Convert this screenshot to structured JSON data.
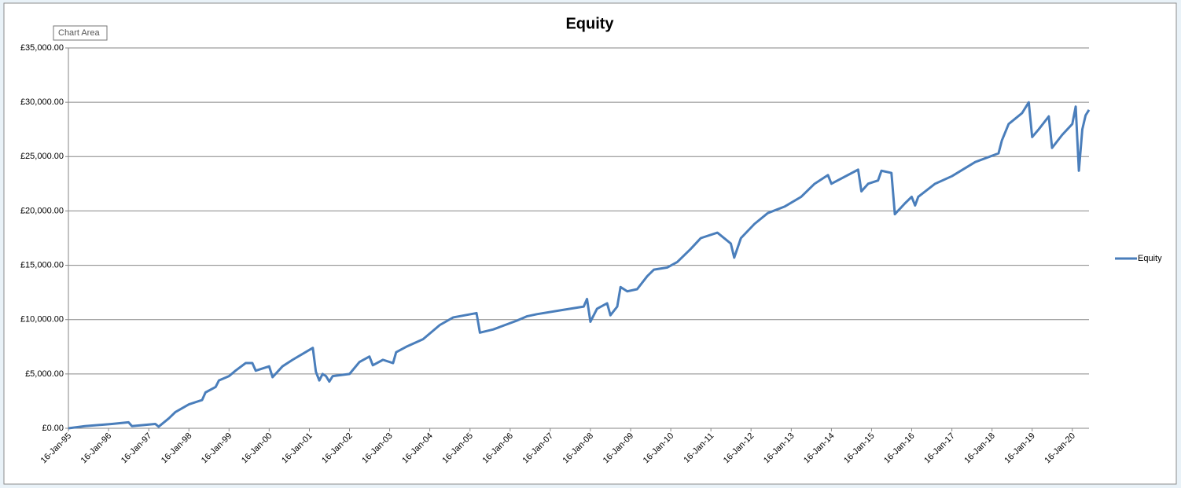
{
  "chart_data": {
    "type": "line",
    "title": "Equity",
    "tooltip": "Chart Area",
    "legend": "right",
    "grid": true,
    "x": [
      "16-Jan-95",
      "16-Jun-95",
      "16-Feb-96",
      "16-Jul-96",
      "16-Aug-96",
      "16-Mar-97",
      "16-Apr-97",
      "16-Jul-97",
      "16-Sep-97",
      "16-Jan-98",
      "16-May-98",
      "16-Jun-98",
      "16-Sep-98",
      "16-Oct-98",
      "16-Jan-99",
      "16-Mar-99",
      "16-Jun-99",
      "16-Aug-99",
      "16-Sep-99",
      "16-Jan-00",
      "16-Feb-00",
      "16-May-00",
      "16-Aug-00",
      "16-Feb-01",
      "16-Mar-01",
      "16-Apr-01",
      "16-May-01",
      "16-Jun-01",
      "16-Jul-01",
      "16-Aug-01",
      "16-Jan-02",
      "16-Apr-02",
      "16-Jul-02",
      "16-Aug-02",
      "16-Nov-02",
      "16-Feb-03",
      "16-Mar-03",
      "16-Jun-03",
      "16-Nov-03",
      "16-Apr-04",
      "16-Aug-04",
      "16-Mar-05",
      "16-Apr-05",
      "16-Aug-05",
      "16-Mar-06",
      "16-Jun-06",
      "16-Sep-06",
      "16-May-07",
      "16-Nov-07",
      "16-Dec-07",
      "16-Jan-08",
      "16-Mar-08",
      "16-Jun-08",
      "16-Jul-08",
      "16-Sep-08",
      "16-Oct-08",
      "16-Dec-08",
      "16-Mar-09",
      "16-Jun-09",
      "16-Aug-09",
      "16-Dec-09",
      "16-Mar-10",
      "16-Jul-10",
      "16-Oct-10",
      "16-Mar-11",
      "16-Jul-11",
      "16-Aug-11",
      "16-Oct-11",
      "16-Feb-12",
      "16-Jun-12",
      "16-Nov-12",
      "16-Apr-13",
      "16-Aug-13",
      "16-Dec-13",
      "16-Jan-14",
      "16-Sep-14",
      "16-Oct-14",
      "16-Dec-14",
      "16-Mar-15",
      "16-Apr-15",
      "16-Jul-15",
      "16-Aug-15",
      "16-Nov-15",
      "16-Jan-16",
      "16-Feb-16",
      "16-Mar-16",
      "16-Aug-16",
      "16-Jan-17",
      "16-Aug-17",
      "16-Mar-18",
      "16-Apr-18",
      "16-Jun-18",
      "16-Oct-18",
      "16-Dec-18",
      "16-Jan-19",
      "16-Mar-19",
      "16-Jun-19",
      "16-Jul-19",
      "16-Oct-19",
      "16-Jan-20",
      "16-Feb-20",
      "16-Mar-20",
      "16-Apr-20",
      "16-May-20",
      "16-Jun-20"
    ],
    "series": [
      {
        "name": "Equity",
        "color": "#4a7ebb",
        "values": [
          0,
          200,
          400,
          550,
          200,
          400,
          150,
          900,
          1500,
          2200,
          2600,
          3300,
          3800,
          4400,
          4800,
          5300,
          6000,
          6000,
          5300,
          5700,
          4700,
          5700,
          6300,
          7400,
          5200,
          4400,
          5000,
          4800,
          4300,
          4800,
          5000,
          6100,
          6600,
          5800,
          6300,
          6000,
          7000,
          7500,
          8200,
          9500,
          10200,
          10600,
          8800,
          9100,
          9900,
          10300,
          10500,
          10900,
          11200,
          11900,
          9800,
          11000,
          11500,
          10400,
          11200,
          13000,
          12600,
          12800,
          14000,
          14600,
          14800,
          15300,
          16500,
          17500,
          18000,
          17000,
          15700,
          17500,
          18800,
          19800,
          20400,
          21300,
          22500,
          23300,
          22500,
          23800,
          21800,
          22500,
          22800,
          23700,
          23500,
          19700,
          20700,
          21300,
          20500,
          21300,
          22500,
          23200,
          24500,
          25300,
          26500,
          28000,
          29000,
          30000,
          26800,
          27500,
          28700,
          25800,
          27000,
          28000,
          29600,
          23700,
          27500,
          28800,
          29300
        ]
      }
    ],
    "xlim": [
      "16-Jan-95",
      "16-Jun-20"
    ],
    "xticks": [
      "16-Jan-95",
      "16-Jan-96",
      "16-Jan-97",
      "16-Jan-98",
      "16-Jan-99",
      "16-Jan-00",
      "16-Jan-01",
      "16-Jan-02",
      "16-Jan-03",
      "16-Jan-04",
      "16-Jan-05",
      "16-Jan-06",
      "16-Jan-07",
      "16-Jan-08",
      "16-Jan-09",
      "16-Jan-10",
      "16-Jan-11",
      "16-Jan-12",
      "16-Jan-13",
      "16-Jan-14",
      "16-Jan-15",
      "16-Jan-16",
      "16-Jan-17",
      "16-Jan-18",
      "16-Jan-19",
      "16-Jan-20"
    ],
    "ylim": [
      0,
      35000
    ],
    "yticks": [
      {
        "value": 0,
        "label": "£0.00"
      },
      {
        "value": 5000,
        "label": "£5,000.00"
      },
      {
        "value": 10000,
        "label": "£10,000.00"
      },
      {
        "value": 15000,
        "label": "£15,000.00"
      },
      {
        "value": 20000,
        "label": "£20,000.00"
      },
      {
        "value": 25000,
        "label": "£25,000.00"
      },
      {
        "value": 30000,
        "label": "£30,000.00"
      },
      {
        "value": 35000,
        "label": "£35,000.00"
      }
    ]
  }
}
